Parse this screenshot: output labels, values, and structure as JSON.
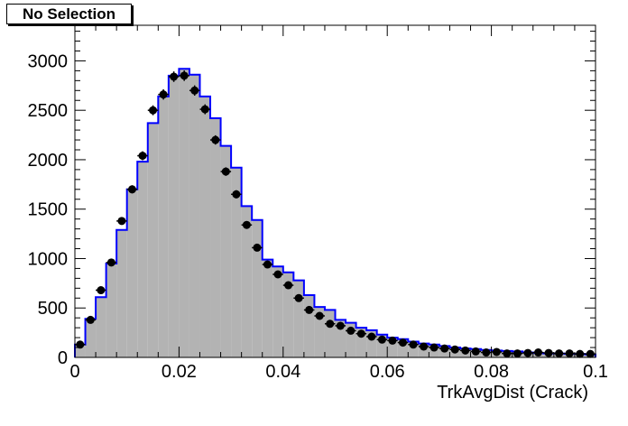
{
  "chart_data": {
    "type": "histogram",
    "title": "",
    "xlabel": "TrkAvgDist (Crack)",
    "ylabel": "",
    "xlim": [
      0,
      0.1
    ],
    "ylim": [
      0,
      3360
    ],
    "x_ticks": [
      0,
      0.02,
      0.04,
      0.06,
      0.08,
      0.1
    ],
    "x_tick_labels": [
      "0",
      "0.02",
      "0.04",
      "0.06",
      "0.08",
      "0.1"
    ],
    "y_ticks": [
      0,
      500,
      1000,
      1500,
      2000,
      2500,
      3000
    ],
    "y_tick_labels": [
      "0",
      "500",
      "1000",
      "1500",
      "2000",
      "2500",
      "3000"
    ],
    "bin_width": 0.002,
    "colors": {
      "hist_line": "#0000ff",
      "hist_fill": "#b3b3b3",
      "points": "#000000"
    },
    "series": [
      {
        "kind": "filled-histogram",
        "bin_starts": [
          0,
          0.002,
          0.004,
          0.006,
          0.008,
          0.01,
          0.012,
          0.014,
          0.016,
          0.018,
          0.02,
          0.022,
          0.024,
          0.026,
          0.028,
          0.03,
          0.032,
          0.034,
          0.036,
          0.038,
          0.04,
          0.042,
          0.044,
          0.046,
          0.048,
          0.05,
          0.052,
          0.054,
          0.056,
          0.058,
          0.06,
          0.062,
          0.064,
          0.066,
          0.068,
          0.07,
          0.072,
          0.074,
          0.076,
          0.078,
          0.08,
          0.082,
          0.084,
          0.086,
          0.088,
          0.09,
          0.092,
          0.094,
          0.096,
          0.098
        ],
        "values": [
          130,
          390,
          610,
          950,
          1290,
          1700,
          1980,
          2370,
          2640,
          2850,
          2920,
          2860,
          2640,
          2420,
          2140,
          1920,
          1530,
          1390,
          990,
          920,
          860,
          780,
          630,
          510,
          480,
          380,
          350,
          300,
          275,
          230,
          200,
          185,
          160,
          140,
          130,
          115,
          100,
          90,
          85,
          75,
          70,
          65,
          60,
          50,
          45,
          40,
          40,
          35,
          35,
          30
        ]
      },
      {
        "kind": "points-with-errors",
        "x": [
          0.001,
          0.003,
          0.005,
          0.007,
          0.009,
          0.011,
          0.013,
          0.015,
          0.017,
          0.019,
          0.021,
          0.023,
          0.025,
          0.027,
          0.029,
          0.031,
          0.033,
          0.035,
          0.037,
          0.039,
          0.041,
          0.043,
          0.045,
          0.047,
          0.049,
          0.051,
          0.053,
          0.055,
          0.057,
          0.059,
          0.061,
          0.063,
          0.065,
          0.067,
          0.069,
          0.071,
          0.073,
          0.075,
          0.077,
          0.079,
          0.081,
          0.083,
          0.085,
          0.087,
          0.089,
          0.091,
          0.093,
          0.095,
          0.097,
          0.099
        ],
        "values": [
          130,
          380,
          680,
          960,
          1380,
          1700,
          2040,
          2500,
          2660,
          2840,
          2850,
          2700,
          2510,
          2200,
          1880,
          1650,
          1340,
          1110,
          940,
          840,
          730,
          600,
          480,
          420,
          340,
          320,
          270,
          240,
          210,
          180,
          170,
          150,
          130,
          110,
          100,
          90,
          80,
          70,
          60,
          50,
          55,
          40,
          40,
          45,
          50,
          45,
          40,
          40,
          35,
          35
        ],
        "errors": [
          11,
          19,
          26,
          31,
          37,
          41,
          45,
          50,
          52,
          53,
          53,
          52,
          50,
          47,
          43,
          41,
          37,
          33,
          31,
          29,
          27,
          25,
          22,
          20,
          18,
          18,
          16,
          15,
          14,
          13,
          13,
          12,
          11,
          10,
          10,
          9,
          9,
          8,
          8,
          7,
          7,
          6,
          6,
          7,
          7,
          7,
          6,
          6,
          6,
          6
        ]
      }
    ]
  },
  "label": {
    "text": "No Selection"
  }
}
